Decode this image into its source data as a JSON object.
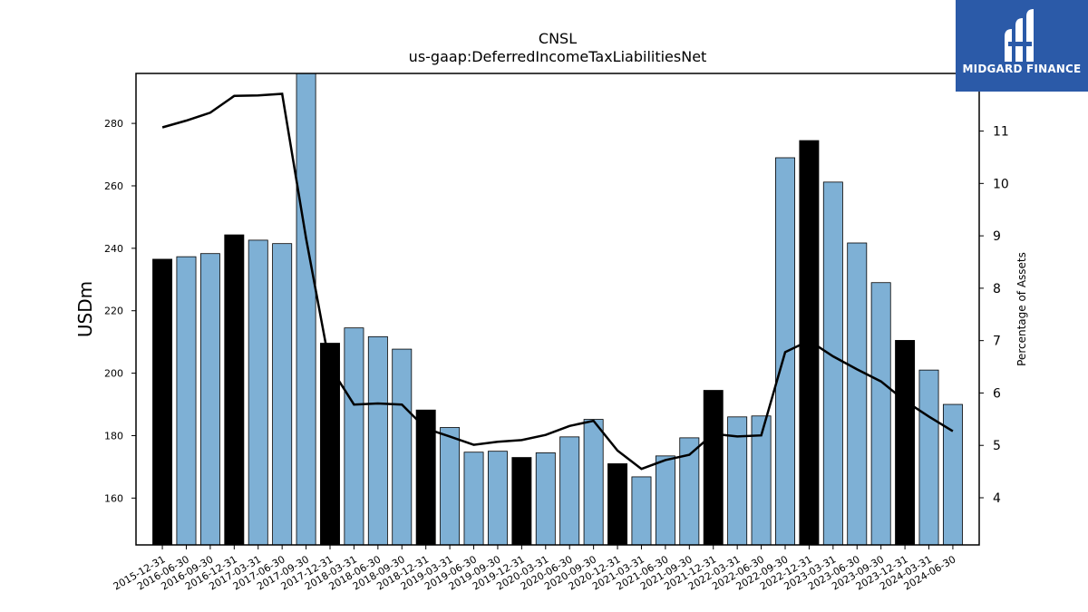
{
  "brand": {
    "name": "MIDGARD FINANCE",
    "bg_color": "#2b5aa8"
  },
  "chart_data": {
    "type": "bar",
    "title": "CNSL",
    "subtitle": "us-gaap:DeferredIncomeTaxLiabilitiesNet",
    "ylabel": "USDm",
    "y2label": "Percentage of Assets",
    "ylim": [
      145,
      296
    ],
    "y2lim": [
      3.1,
      12.1
    ],
    "yticks": [
      160,
      180,
      200,
      220,
      240,
      260,
      280
    ],
    "y2ticks": [
      4,
      5,
      6,
      7,
      8,
      9,
      10,
      11
    ],
    "categories": [
      "2015-12-31",
      "2016-06-30",
      "2016-09-30",
      "2016-12-31",
      "2017-03-31",
      "2017-06-30",
      "2017-09-30",
      "2017-12-31",
      "2018-03-31",
      "2018-06-30",
      "2018-09-30",
      "2018-12-31",
      "2019-03-31",
      "2019-06-30",
      "2019-09-30",
      "2019-12-31",
      "2020-03-31",
      "2020-06-30",
      "2020-09-30",
      "2020-12-31",
      "2021-03-31",
      "2021-06-30",
      "2021-09-30",
      "2021-12-31",
      "2022-03-31",
      "2022-06-30",
      "2022-09-30",
      "2022-12-31",
      "2023-03-31",
      "2023-06-30",
      "2023-09-30",
      "2023-12-31",
      "2024-03-31",
      "2024-06-30"
    ],
    "bar_values": [
      236.5,
      237.3,
      238.3,
      244.3,
      242.6,
      241.5,
      296,
      209.6,
      214.5,
      211.7,
      207.7,
      188.2,
      182.6,
      174.7,
      175.0,
      173.0,
      174.5,
      179.6,
      185.2,
      171.0,
      166.8,
      173.5,
      179.3,
      194.5,
      186.0,
      186.3,
      269.0,
      274.5,
      261.2,
      241.7,
      229.0,
      210.5,
      201.0,
      190.0
    ],
    "bar_highlight": [
      true,
      false,
      false,
      true,
      false,
      false,
      false,
      true,
      false,
      false,
      false,
      true,
      false,
      false,
      false,
      true,
      false,
      false,
      false,
      true,
      false,
      false,
      false,
      true,
      false,
      false,
      false,
      true,
      false,
      false,
      false,
      true,
      false,
      false
    ],
    "line_values": [
      11.07,
      11.2,
      11.35,
      11.67,
      11.68,
      11.71,
      8.95,
      6.5,
      5.78,
      5.8,
      5.78,
      5.32,
      5.17,
      5.01,
      5.07,
      5.1,
      5.2,
      5.37,
      5.47,
      4.9,
      4.55,
      4.72,
      4.82,
      5.22,
      5.17,
      5.19,
      6.78,
      7.0,
      6.7,
      6.45,
      6.22,
      5.85,
      5.55,
      5.27
    ],
    "colors": {
      "bar": "#7eb0d5",
      "bar_highlight": "#000000",
      "line": "#000000"
    },
    "legend": "none",
    "grid": false
  }
}
